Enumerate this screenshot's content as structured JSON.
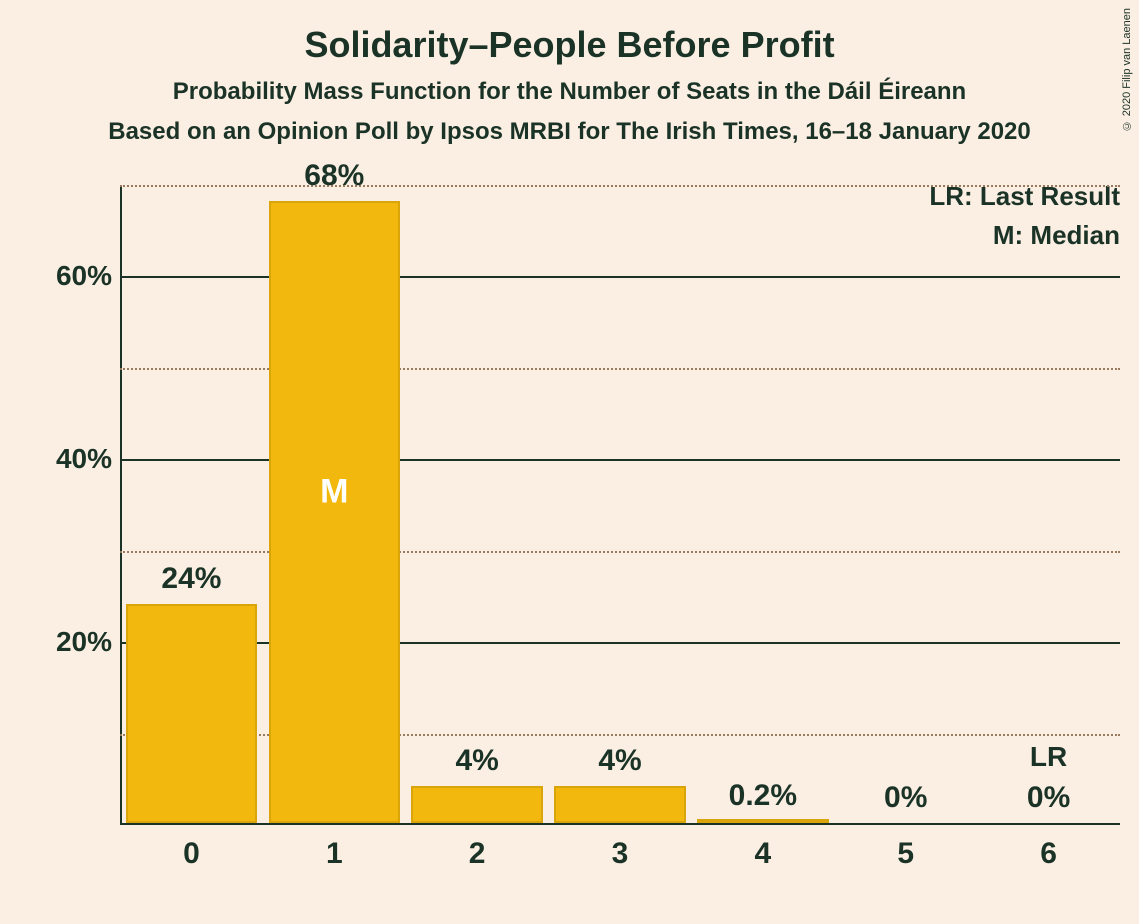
{
  "title": "Solidarity–People Before Profit",
  "subtitle1": "Probability Mass Function for the Number of Seats in the Dáil Éireann",
  "subtitle2": "Based on an Opinion Poll by Ipsos MRBI for The Irish Times, 16–18 January 2020",
  "credits": "© 2020 Filip van Laenen",
  "legend": {
    "lr": "LR: Last Result",
    "m": "M: Median"
  },
  "chart": {
    "type": "bar",
    "background_color": "#fbeee3",
    "bar_color": "#f2b80d",
    "bar_border_color": "#d9a50b",
    "text_color": "#1a3326",
    "median_text_color": "#ffffff",
    "grid_major_color": "#1a3326",
    "grid_minor_color": "#997a5c",
    "y_max": 70,
    "y_major_step": 20,
    "y_minor_step": 10,
    "y_tick_format": "%",
    "bar_width_ratio": 0.92,
    "categories": [
      "0",
      "1",
      "2",
      "3",
      "4",
      "5",
      "6"
    ],
    "values": [
      24,
      68,
      4,
      4,
      0.2,
      0,
      0
    ],
    "value_labels": [
      "24%",
      "68%",
      "4%",
      "4%",
      "0.2%",
      "0%",
      "0%"
    ],
    "median_index": 1,
    "median_text": "M",
    "lr_index": 6,
    "lr_text": "LR",
    "title_fontsize": 36,
    "subtitle_fontsize": 24,
    "axis_label_fontsize": 28,
    "x_tick_fontsize": 30,
    "bar_label_fontsize": 30,
    "legend_fontsize": 26
  }
}
